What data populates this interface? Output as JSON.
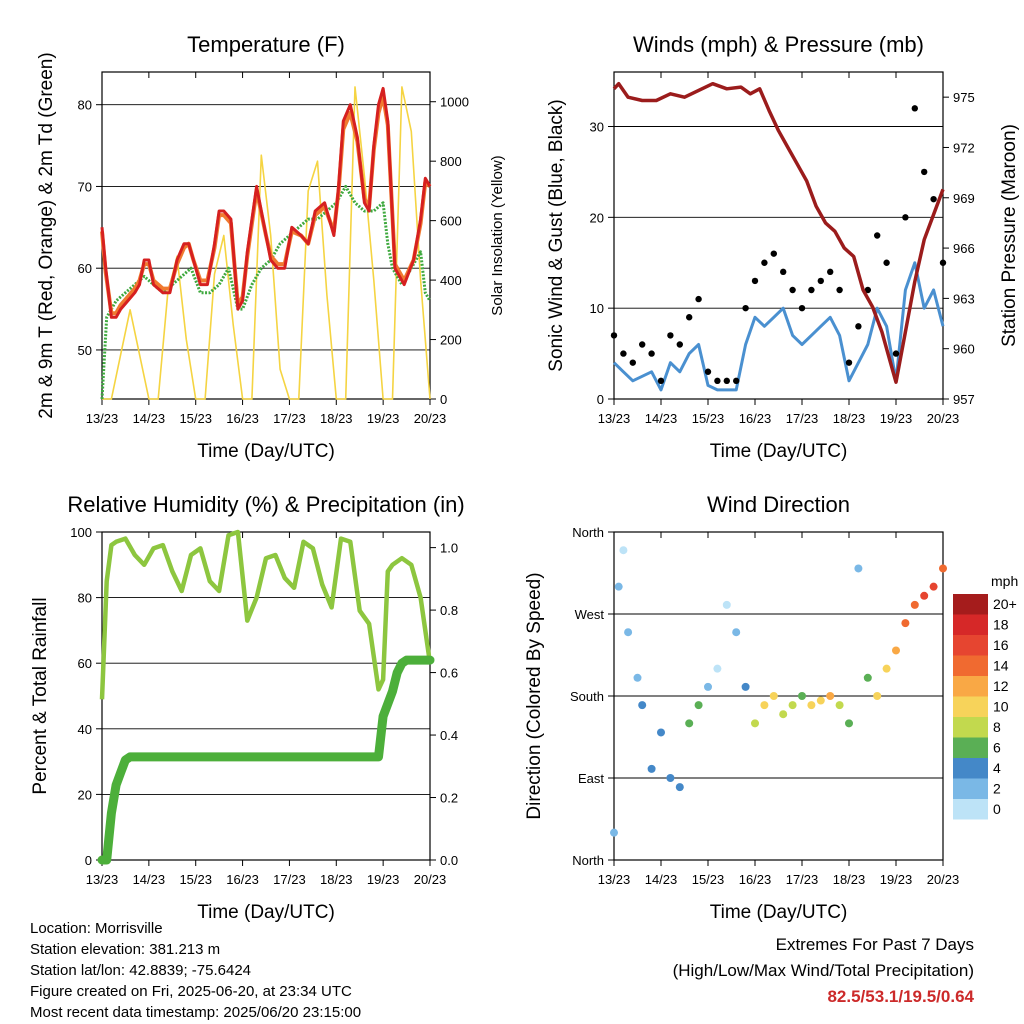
{
  "time_ticks": [
    "13/23",
    "14/23",
    "15/23",
    "16/23",
    "17/23",
    "18/23",
    "19/23",
    "20/23"
  ],
  "footer": {
    "location": "Location: Morrisville",
    "elevation": "Station elevation: 381.213 m",
    "latlon": "Station lat/lon: 42.8839; -75.6424",
    "created": "Figure created on Fri, 2025-06-20, at 23:34 UTC",
    "recent": "Most recent data timestamp: 2025/06/20 23:15:00",
    "extremes_title": "Extremes For Past 7 Days",
    "extremes_sub": "(High/Low/Max Wind/Total Precipitation)",
    "extremes_values": "82.5/53.1/19.5/0.64"
  },
  "chart_data": [
    {
      "id": "temperature",
      "type": "line",
      "title": "Temperature (F)",
      "xlabel": "Time (Day/UTC)",
      "ylabel": "2m & 9m T (Red, Orange) & 2m Td (Green)",
      "y2label": "Solar Insolation (Yellow)",
      "xlim": [
        0,
        7
      ],
      "ylim": [
        44,
        84
      ],
      "y2lim": [
        0,
        1100
      ],
      "yticks": [
        50,
        60,
        70,
        80
      ],
      "y2ticks": [
        0,
        200,
        400,
        600,
        800,
        1000
      ],
      "grid": true,
      "colors": {
        "t2m": "#d62020",
        "t9m": "#f07a30",
        "td": "#3fa93f",
        "solar": "#f5d442"
      },
      "series": {
        "t2m": {
          "x": [
            0,
            0.08,
            0.2,
            0.3,
            0.4,
            0.55,
            0.7,
            0.8,
            0.9,
            1.0,
            1.1,
            1.3,
            1.45,
            1.6,
            1.75,
            1.85,
            1.95,
            2.1,
            2.25,
            2.4,
            2.5,
            2.6,
            2.75,
            2.9,
            3.0,
            3.1,
            3.3,
            3.5,
            3.6,
            3.75,
            3.9,
            4.05,
            4.25,
            4.4,
            4.55,
            4.75,
            4.95,
            5.05,
            5.15,
            5.3,
            5.45,
            5.6,
            5.7,
            5.8,
            5.9,
            6.0,
            6.1,
            6.25,
            6.45,
            6.65,
            6.8,
            6.9,
            7.0
          ],
          "y": [
            65,
            60,
            54,
            54,
            55,
            56,
            57,
            58,
            61,
            61,
            58,
            57,
            57,
            61,
            63,
            63,
            61,
            58,
            58,
            63,
            67,
            67,
            66,
            55,
            56,
            62,
            70,
            64,
            61,
            60,
            60,
            65,
            64,
            63,
            67,
            68,
            64,
            70,
            78,
            80,
            76,
            68,
            67,
            75,
            80,
            82,
            78,
            60,
            58,
            61,
            66,
            71,
            70
          ]
        },
        "t9m": {
          "x": [
            0,
            0.08,
            0.2,
            0.3,
            0.4,
            0.55,
            0.7,
            0.8,
            0.9,
            1.0,
            1.1,
            1.3,
            1.45,
            1.6,
            1.75,
            1.85,
            1.95,
            2.1,
            2.25,
            2.4,
            2.5,
            2.6,
            2.75,
            2.9,
            3.0,
            3.1,
            3.3,
            3.5,
            3.6,
            3.75,
            3.9,
            4.05,
            4.25,
            4.4,
            4.55,
            4.75,
            4.95,
            5.05,
            5.15,
            5.3,
            5.45,
            5.6,
            5.7,
            5.8,
            5.9,
            6.0,
            6.1,
            6.25,
            6.45,
            6.65,
            6.8,
            6.9,
            7.0
          ],
          "y": [
            64.5,
            59.5,
            54.5,
            54.5,
            55.5,
            56.5,
            57.5,
            58.5,
            60.5,
            60.5,
            58.5,
            57.5,
            57.5,
            60.5,
            62.5,
            63,
            61,
            58.5,
            58.5,
            62.5,
            66.5,
            66.5,
            65.5,
            55.5,
            56.5,
            61.5,
            69.5,
            64,
            61.5,
            60.5,
            60.5,
            64.5,
            64,
            63,
            66.5,
            67.5,
            64.5,
            69.5,
            77,
            79,
            75.5,
            68.5,
            67.5,
            74.5,
            79,
            81,
            77.5,
            60.5,
            58.5,
            61,
            65.5,
            70.5,
            70
          ]
        },
        "td": {
          "x": [
            0,
            0.1,
            0.3,
            0.5,
            0.7,
            0.9,
            1.1,
            1.3,
            1.5,
            1.7,
            1.9,
            2.1,
            2.3,
            2.5,
            2.7,
            2.9,
            3.0,
            3.2,
            3.4,
            3.6,
            3.8,
            4.0,
            4.2,
            4.4,
            4.6,
            4.8,
            5.0,
            5.2,
            5.4,
            5.6,
            5.8,
            6.0,
            6.1,
            6.2,
            6.4,
            6.6,
            6.8,
            6.9,
            7.0
          ],
          "y": [
            44,
            54,
            56,
            57,
            58,
            59,
            58,
            57,
            58,
            59,
            60,
            57,
            57,
            58,
            60,
            55,
            55,
            58,
            60,
            61,
            63,
            64,
            65,
            66,
            66,
            67,
            68,
            70,
            68,
            67,
            67,
            68,
            63,
            60,
            58,
            60,
            62,
            57,
            56
          ]
        },
        "solar": {
          "x": [
            0,
            0.2,
            0.4,
            0.6,
            0.8,
            1.0,
            1.2,
            1.4,
            1.6,
            1.8,
            2.0,
            2.2,
            2.4,
            2.6,
            2.8,
            3.0,
            3.2,
            3.4,
            3.6,
            3.8,
            4.0,
            4.2,
            4.4,
            4.6,
            4.8,
            5.0,
            5.2,
            5.4,
            5.6,
            5.8,
            6.0,
            6.2,
            6.4,
            6.6,
            6.8,
            7.0
          ],
          "y": [
            0,
            0,
            150,
            300,
            150,
            0,
            0,
            350,
            480,
            200,
            0,
            0,
            420,
            550,
            250,
            0,
            0,
            820,
            550,
            100,
            0,
            0,
            700,
            800,
            350,
            0,
            0,
            1050,
            750,
            400,
            0,
            0,
            1050,
            900,
            400,
            0
          ]
        }
      }
    },
    {
      "id": "winds",
      "type": "scatter",
      "title": "Winds (mph) & Pressure (mb)",
      "xlabel": "Time (Day/UTC)",
      "ylabel": "Sonic Wind & Gust (Blue, Black)",
      "y2label": "Station Pressure (Maroon)",
      "xlim": [
        0,
        7
      ],
      "ylim": [
        0,
        36
      ],
      "y2lim": [
        957,
        976.5
      ],
      "yticks": [
        0,
        10,
        20,
        30
      ],
      "y2ticks": [
        957,
        960,
        963,
        966,
        969,
        972,
        975
      ],
      "grid": true,
      "colors": {
        "wind": "#4a90d0",
        "gust": "#000000",
        "pressure": "#9b1c1c"
      },
      "series": {
        "wind": {
          "x": [
            0,
            0.2,
            0.4,
            0.6,
            0.8,
            1.0,
            1.2,
            1.4,
            1.6,
            1.8,
            2.0,
            2.2,
            2.4,
            2.6,
            2.8,
            3.0,
            3.2,
            3.4,
            3.6,
            3.8,
            4.0,
            4.2,
            4.4,
            4.6,
            4.8,
            5.0,
            5.2,
            5.4,
            5.6,
            5.8,
            6.0,
            6.2,
            6.4,
            6.6,
            6.8,
            7.0
          ],
          "y": [
            4,
            3,
            2,
            2.5,
            3,
            1,
            4,
            3,
            5,
            6,
            1.5,
            1,
            1,
            1,
            6,
            9,
            8,
            9,
            10,
            7,
            6,
            7,
            8,
            9,
            7,
            2,
            4,
            6,
            10,
            8,
            2,
            12,
            15,
            10,
            12,
            8
          ]
        },
        "gust": {
          "x": [
            0,
            0.2,
            0.4,
            0.6,
            0.8,
            1.0,
            1.2,
            1.4,
            1.6,
            1.8,
            2.0,
            2.2,
            2.4,
            2.6,
            2.8,
            3.0,
            3.2,
            3.4,
            3.6,
            3.8,
            4.0,
            4.2,
            4.4,
            4.6,
            4.8,
            5.0,
            5.2,
            5.4,
            5.6,
            5.8,
            6.0,
            6.2,
            6.4,
            6.6,
            6.8,
            7.0
          ],
          "y": [
            7,
            5,
            4,
            6,
            5,
            2,
            7,
            6,
            9,
            11,
            3,
            2,
            2,
            2,
            10,
            13,
            15,
            16,
            14,
            12,
            10,
            12,
            13,
            14,
            12,
            4,
            8,
            12,
            18,
            15,
            5,
            20,
            32,
            25,
            22,
            15
          ]
        },
        "pressure": {
          "x": [
            0,
            0.1,
            0.3,
            0.6,
            0.9,
            1.2,
            1.5,
            1.8,
            2.1,
            2.4,
            2.7,
            2.9,
            3.1,
            3.3,
            3.5,
            3.7,
            3.9,
            4.1,
            4.3,
            4.5,
            4.7,
            4.9,
            5.1,
            5.3,
            5.5,
            5.7,
            5.9,
            6.0,
            6.2,
            6.4,
            6.6,
            6.8,
            7.0
          ],
          "y": [
            975.5,
            975.8,
            975.0,
            974.8,
            974.8,
            975.2,
            975.0,
            975.4,
            975.8,
            975.5,
            975.6,
            975.2,
            975.5,
            974.2,
            973.0,
            972.0,
            971.0,
            970.0,
            968.5,
            967.5,
            967.0,
            966.0,
            965.5,
            963.5,
            962.5,
            961.0,
            959.0,
            958.0,
            961.0,
            964.0,
            966.5,
            968.0,
            969.5
          ]
        }
      }
    },
    {
      "id": "humidity",
      "type": "line",
      "title": "Relative Humidity (%) & Precipitation (in)",
      "xlabel": "Time (Day/UTC)",
      "ylabel": "Percent & Total Rainfall",
      "xlim": [
        0,
        7
      ],
      "ylim": [
        0,
        100
      ],
      "y2lim": [
        0,
        1.05
      ],
      "yticks": [
        0,
        20,
        40,
        60,
        80,
        100
      ],
      "y2ticks": [
        "0.0",
        "0.2",
        "0.4",
        "0.6",
        "0.8",
        "1.0"
      ],
      "y2tick_values": [
        0,
        0.2,
        0.4,
        0.6,
        0.8,
        1.0
      ],
      "grid": true,
      "colors": {
        "rh": "#8dc63f",
        "precip": "#4caf3a"
      },
      "series": {
        "rh": {
          "x": [
            0,
            0.1,
            0.2,
            0.3,
            0.5,
            0.7,
            0.9,
            1.1,
            1.3,
            1.5,
            1.7,
            1.9,
            2.1,
            2.3,
            2.5,
            2.7,
            2.9,
            3.1,
            3.3,
            3.5,
            3.7,
            3.9,
            4.1,
            4.3,
            4.5,
            4.7,
            4.9,
            5.1,
            5.3,
            5.5,
            5.7,
            5.9,
            6.0,
            6.1,
            6.2,
            6.4,
            6.6,
            6.8,
            7.0
          ],
          "y": [
            49,
            85,
            96,
            97,
            98,
            93,
            90,
            95,
            96,
            88,
            82,
            93,
            95,
            85,
            82,
            99,
            100,
            73,
            80,
            92,
            93,
            86,
            83,
            97,
            95,
            84,
            77,
            98,
            97,
            76,
            72,
            52,
            55,
            88,
            90,
            92,
            90,
            80,
            60
          ]
        },
        "precip": {
          "x": [
            0,
            0.1,
            0.2,
            0.3,
            0.4,
            0.5,
            0.6,
            2.0,
            4.0,
            5.9,
            6.0,
            6.1,
            6.2,
            6.3,
            6.4,
            6.5,
            7.0
          ],
          "y": [
            0,
            0,
            0.15,
            0.24,
            0.28,
            0.32,
            0.33,
            0.33,
            0.33,
            0.33,
            0.46,
            0.5,
            0.54,
            0.6,
            0.63,
            0.64,
            0.64
          ]
        }
      }
    },
    {
      "id": "direction",
      "type": "scatter",
      "title": "Wind Direction",
      "xlabel": "Time (Day/UTC)",
      "ylabel": "Direction (Colored By Speed)",
      "xlim": [
        0,
        7
      ],
      "ylim": [
        0,
        360
      ],
      "ytick_labels": [
        "North",
        "East",
        "South",
        "West",
        "North"
      ],
      "ytick_values": [
        0,
        90,
        180,
        270,
        360
      ],
      "grid": true,
      "legend": {
        "title": "mph",
        "position": "right",
        "labels": [
          "20+",
          "18",
          "16",
          "14",
          "12",
          "10",
          "8",
          "6",
          "4",
          "2",
          "0"
        ],
        "colors": [
          "#a51c1c",
          "#d62828",
          "#e64530",
          "#f06a30",
          "#f9a845",
          "#f7d35a",
          "#c2d94e",
          "#5aaf55",
          "#4488c8",
          "#7ab8e6",
          "#bde3f7"
        ]
      },
      "series": {
        "direction": {
          "x": [
            0.0,
            0.1,
            0.2,
            0.3,
            0.5,
            0.6,
            0.8,
            1.0,
            1.2,
            1.4,
            1.6,
            1.8,
            2.0,
            2.2,
            2.4,
            2.6,
            2.8,
            3.0,
            3.2,
            3.4,
            3.6,
            3.8,
            4.0,
            4.2,
            4.4,
            4.6,
            4.8,
            5.0,
            5.2,
            5.4,
            5.6,
            5.8,
            6.0,
            6.2,
            6.4,
            6.6,
            6.8,
            7.0
          ],
          "y": [
            30,
            300,
            340,
            250,
            200,
            170,
            100,
            140,
            90,
            80,
            150,
            170,
            190,
            210,
            280,
            250,
            190,
            150,
            170,
            180,
            160,
            170,
            180,
            170,
            175,
            180,
            170,
            150,
            320,
            200,
            180,
            210,
            230,
            260,
            280,
            290,
            300,
            320
          ],
          "speed": [
            2,
            1,
            0,
            1,
            2,
            3,
            4,
            4,
            3,
            3,
            5,
            6,
            1,
            0,
            0,
            1,
            4,
            8,
            9,
            10,
            8,
            7,
            6,
            9,
            10,
            11,
            8,
            6,
            2,
            5,
            9,
            10,
            11,
            13,
            14,
            15,
            16,
            14
          ]
        }
      }
    }
  ]
}
